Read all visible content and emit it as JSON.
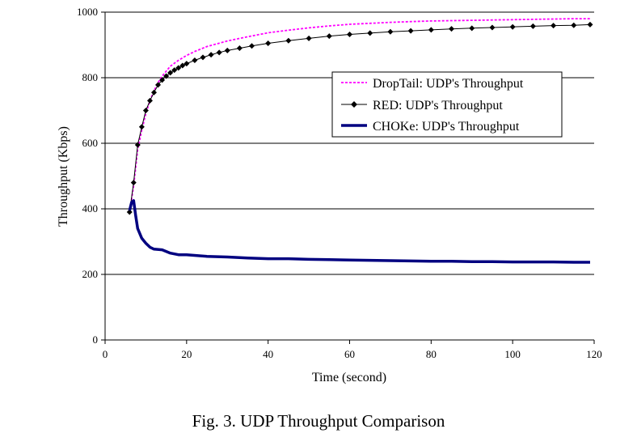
{
  "caption": "Fig. 3.  UDP Throughput Comparison",
  "chart_data": {
    "type": "line",
    "title": "",
    "xlabel": "Time (second)",
    "ylabel": "Throughput (Kbps)",
    "xlim": [
      0,
      120
    ],
    "ylim": [
      0,
      1000
    ],
    "xticks": [
      0,
      20,
      40,
      60,
      80,
      100,
      120
    ],
    "yticks": [
      0,
      200,
      400,
      600,
      800,
      1000
    ],
    "grid": "horizontal",
    "legend_position": "upper-right",
    "series": [
      {
        "name": "DropTail: UDP's Throughput",
        "color": "#ff00ff",
        "style": "dotted",
        "marker": "none",
        "x": [
          6,
          7,
          8,
          9,
          10,
          11,
          12,
          13,
          14,
          15,
          16,
          18,
          20,
          22,
          25,
          30,
          35,
          40,
          45,
          50,
          55,
          60,
          65,
          70,
          75,
          80,
          85,
          90,
          95,
          100,
          105,
          110,
          115,
          119
        ],
        "y": [
          390,
          470,
          580,
          640,
          690,
          730,
          760,
          785,
          805,
          820,
          835,
          853,
          868,
          880,
          895,
          912,
          925,
          937,
          945,
          952,
          958,
          963,
          966,
          969,
          971,
          973,
          974,
          975,
          976,
          977,
          978,
          979,
          980,
          980
        ]
      },
      {
        "name": "RED: UDP's Throughput",
        "color": "#000000",
        "style": "solid",
        "marker": "diamond",
        "x": [
          6,
          7,
          8,
          9,
          10,
          11,
          12,
          13,
          14,
          15,
          16,
          17,
          18,
          19,
          20,
          22,
          24,
          26,
          28,
          30,
          33,
          36,
          40,
          45,
          50,
          55,
          60,
          65,
          70,
          75,
          80,
          85,
          90,
          95,
          100,
          105,
          110,
          115,
          119
        ],
        "y": [
          390,
          480,
          595,
          650,
          700,
          730,
          755,
          778,
          793,
          805,
          815,
          823,
          830,
          837,
          843,
          853,
          862,
          870,
          877,
          883,
          890,
          897,
          905,
          913,
          920,
          927,
          932,
          936,
          940,
          943,
          946,
          949,
          951,
          953,
          955,
          957,
          959,
          960,
          962
        ]
      },
      {
        "name": "CHOKe: UDP's Throughput",
        "color": "#000080",
        "style": "solid-thick",
        "marker": "none",
        "x": [
          6,
          6.5,
          7,
          7.5,
          8,
          9,
          10,
          11,
          12,
          14,
          16,
          18,
          20,
          25,
          30,
          35,
          40,
          45,
          50,
          55,
          60,
          65,
          70,
          75,
          80,
          85,
          90,
          95,
          100,
          105,
          110,
          115,
          119
        ],
        "y": [
          395,
          420,
          425,
          380,
          340,
          310,
          295,
          283,
          277,
          275,
          265,
          260,
          260,
          255,
          253,
          250,
          248,
          248,
          246,
          245,
          244,
          243,
          242,
          241,
          240,
          240,
          239,
          239,
          238,
          238,
          238,
          237,
          237
        ]
      }
    ]
  }
}
